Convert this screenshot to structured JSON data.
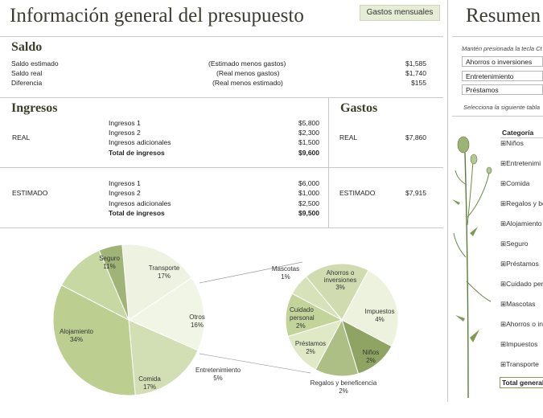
{
  "header": {
    "title": "Información general del presupuesto",
    "monthly_button": "Gastos mensuales",
    "side_title": "Resumen"
  },
  "saldo": {
    "title": "Saldo",
    "rows": [
      {
        "label": "Saldo estimado",
        "note": "(Estimado menos gastos)",
        "value": "$1,585"
      },
      {
        "label": "Saldo real",
        "note": "(Real menos gastos)",
        "value": "$1,740"
      },
      {
        "label": "Diferencia",
        "note": "(Real menos estimado)",
        "value": "$155"
      }
    ]
  },
  "ingresos": {
    "title": "Ingresos",
    "real": {
      "label": "REAL",
      "rows": [
        {
          "label": "Ingresos 1",
          "value": "$5,800"
        },
        {
          "label": "Ingresos 2",
          "value": "$2,300"
        },
        {
          "label": "Ingresos adicionales",
          "value": "$1,500"
        }
      ],
      "total_label": "Total de ingresos",
      "total_value": "$9,600"
    },
    "estimado": {
      "label": "ESTIMADO",
      "rows": [
        {
          "label": "Ingresos 1",
          "value": "$6,000"
        },
        {
          "label": "Ingresos 2",
          "value": "$1,000"
        },
        {
          "label": "Ingresos adicionales",
          "value": "$2,500"
        }
      ],
      "total_label": "Total de ingresos",
      "total_value": "$9,500"
    }
  },
  "gastos": {
    "title": "Gastos",
    "real": {
      "label": "REAL",
      "value": "$7,860"
    },
    "estimado": {
      "label": "ESTIMADO",
      "value": "$7,915"
    }
  },
  "sidebar": {
    "note1": "Mantén presionada la tecla Ct",
    "slicers": [
      "Ahorros o inversiones",
      "Entretenimiento",
      "Préstamos"
    ],
    "note2": "Selecciona la siguiente tabla",
    "category_header": "Categoría",
    "categories": [
      "Niños",
      "Entretenimi",
      "Comida",
      "Regalos y be",
      "Alojamiento",
      "Seguro",
      "Préstamos",
      "Cuidado pers",
      "Mascotas",
      "Ahorros o inv",
      "Impuestos",
      "Transporte"
    ],
    "total_label": "Total general"
  },
  "chart_data": [
    {
      "type": "pie",
      "title": "",
      "slices": [
        {
          "label": "Transporte",
          "value": 17,
          "color": "#eef3e1"
        },
        {
          "label": "Otros",
          "value": 16,
          "color": "#f1f5e6"
        },
        {
          "label": "Comida",
          "value": 17,
          "color": "#d2deb3"
        },
        {
          "label": "Alojamiento",
          "value": 34,
          "color": "#bccf91"
        },
        {
          "label": "Seguro",
          "value": 11,
          "color": "#c8d8a2"
        },
        {
          "label": "Entretenimiento",
          "value": 5,
          "color": "#9fb476"
        }
      ],
      "percent_labels": [
        "17%",
        "16%",
        "17%",
        "34%",
        "11%",
        "5%"
      ]
    },
    {
      "type": "pie",
      "title": "",
      "slices": [
        {
          "label": "Impuestos",
          "value": 4,
          "color": "#edf2df"
        },
        {
          "label": "Niños",
          "value": 2,
          "color": "#8fa463"
        },
        {
          "label": "Regalos y beneficencia",
          "value": 2,
          "color": "#aebf86"
        },
        {
          "label": "Préstamos",
          "value": 2,
          "color": "#dfe9c6"
        },
        {
          "label": "Cuidado personal",
          "value": 2,
          "color": "#c3d49b"
        },
        {
          "label": "Mascotas",
          "value": 1,
          "color": "#d7e2bb"
        },
        {
          "label": "Ahorros o inversiones",
          "value": 3,
          "color": "#d0dcb0"
        }
      ],
      "percent_labels": [
        "4%",
        "2%",
        "2%",
        "2%",
        "2%",
        "1%",
        "3%"
      ]
    }
  ]
}
